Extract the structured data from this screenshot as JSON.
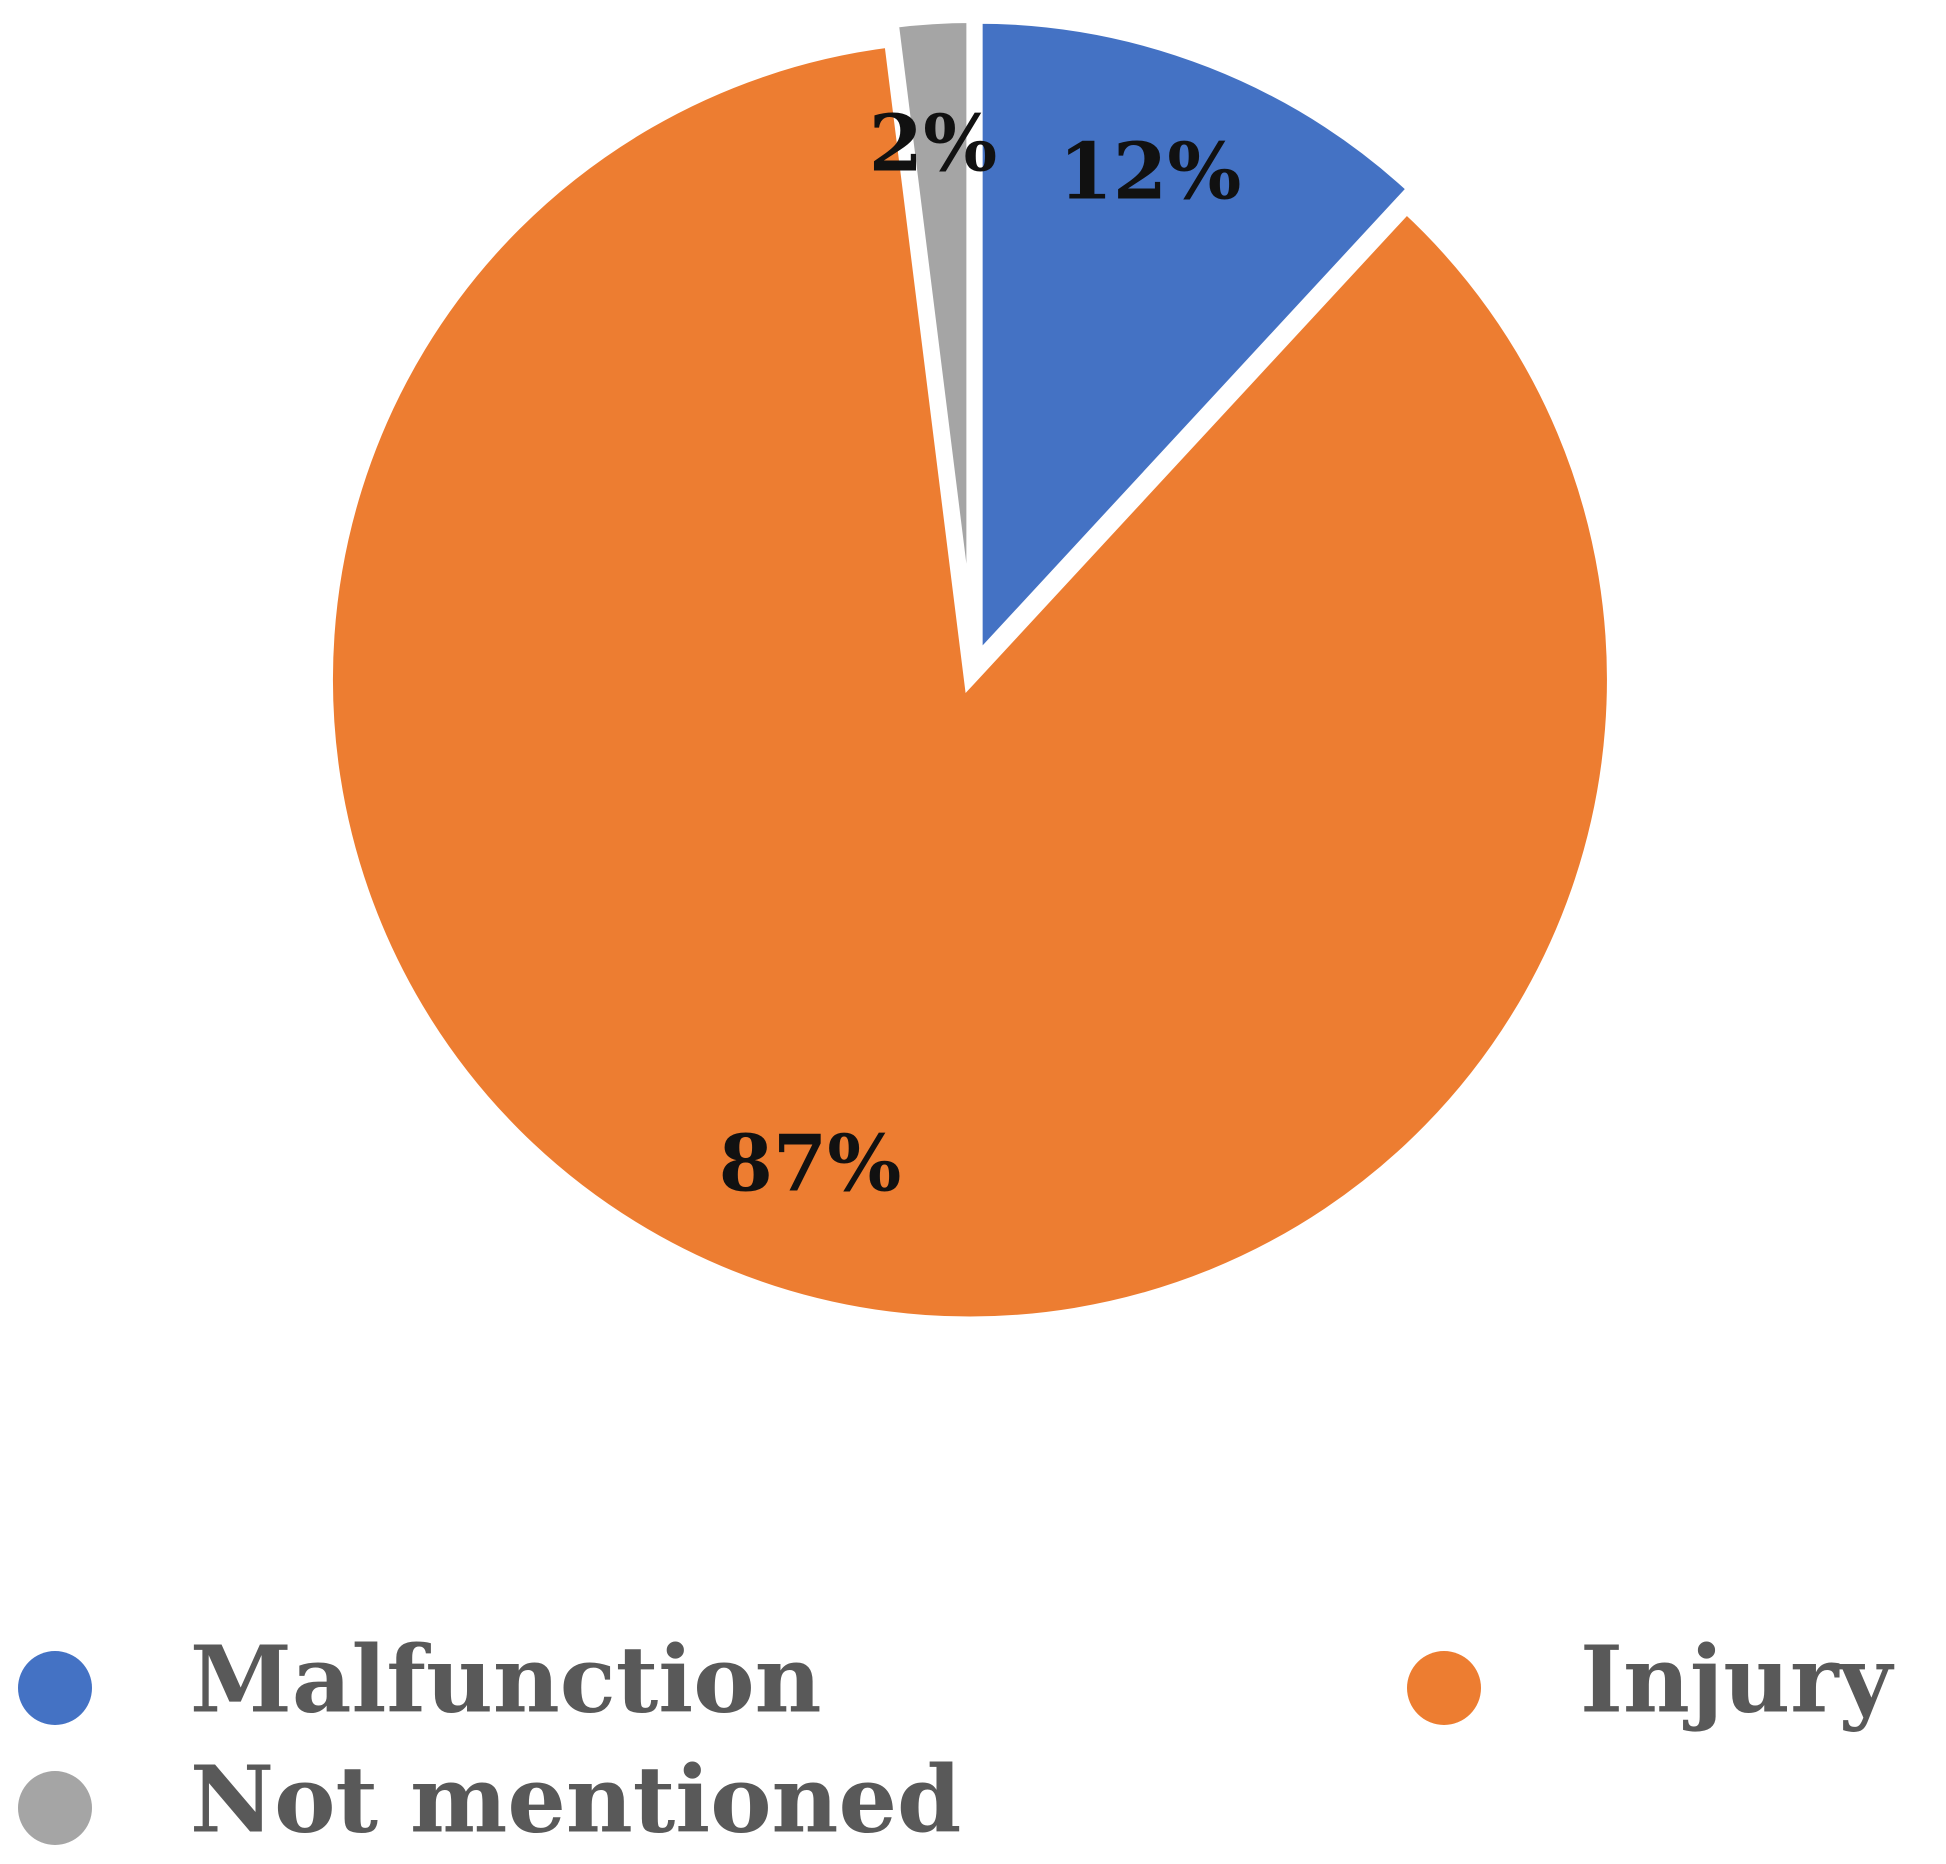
{
  "chart_data": {
    "type": "pie",
    "title": "",
    "slices": [
      {
        "label": "Malfunction",
        "value": 12,
        "value_label": "12%",
        "color": "#4472C4"
      },
      {
        "label": "Injury",
        "value": 87,
        "value_label": "87%",
        "color": "#ED7D31"
      },
      {
        "label": "Not mentioned",
        "value": 2,
        "value_label": "2%",
        "color": "#A5A5A5"
      }
    ],
    "start_angle_deg": 0,
    "direction": "clockwise",
    "legend": {
      "position": "bottom",
      "entries": [
        "Malfunction",
        "Injury",
        "Not mentioned"
      ]
    }
  }
}
